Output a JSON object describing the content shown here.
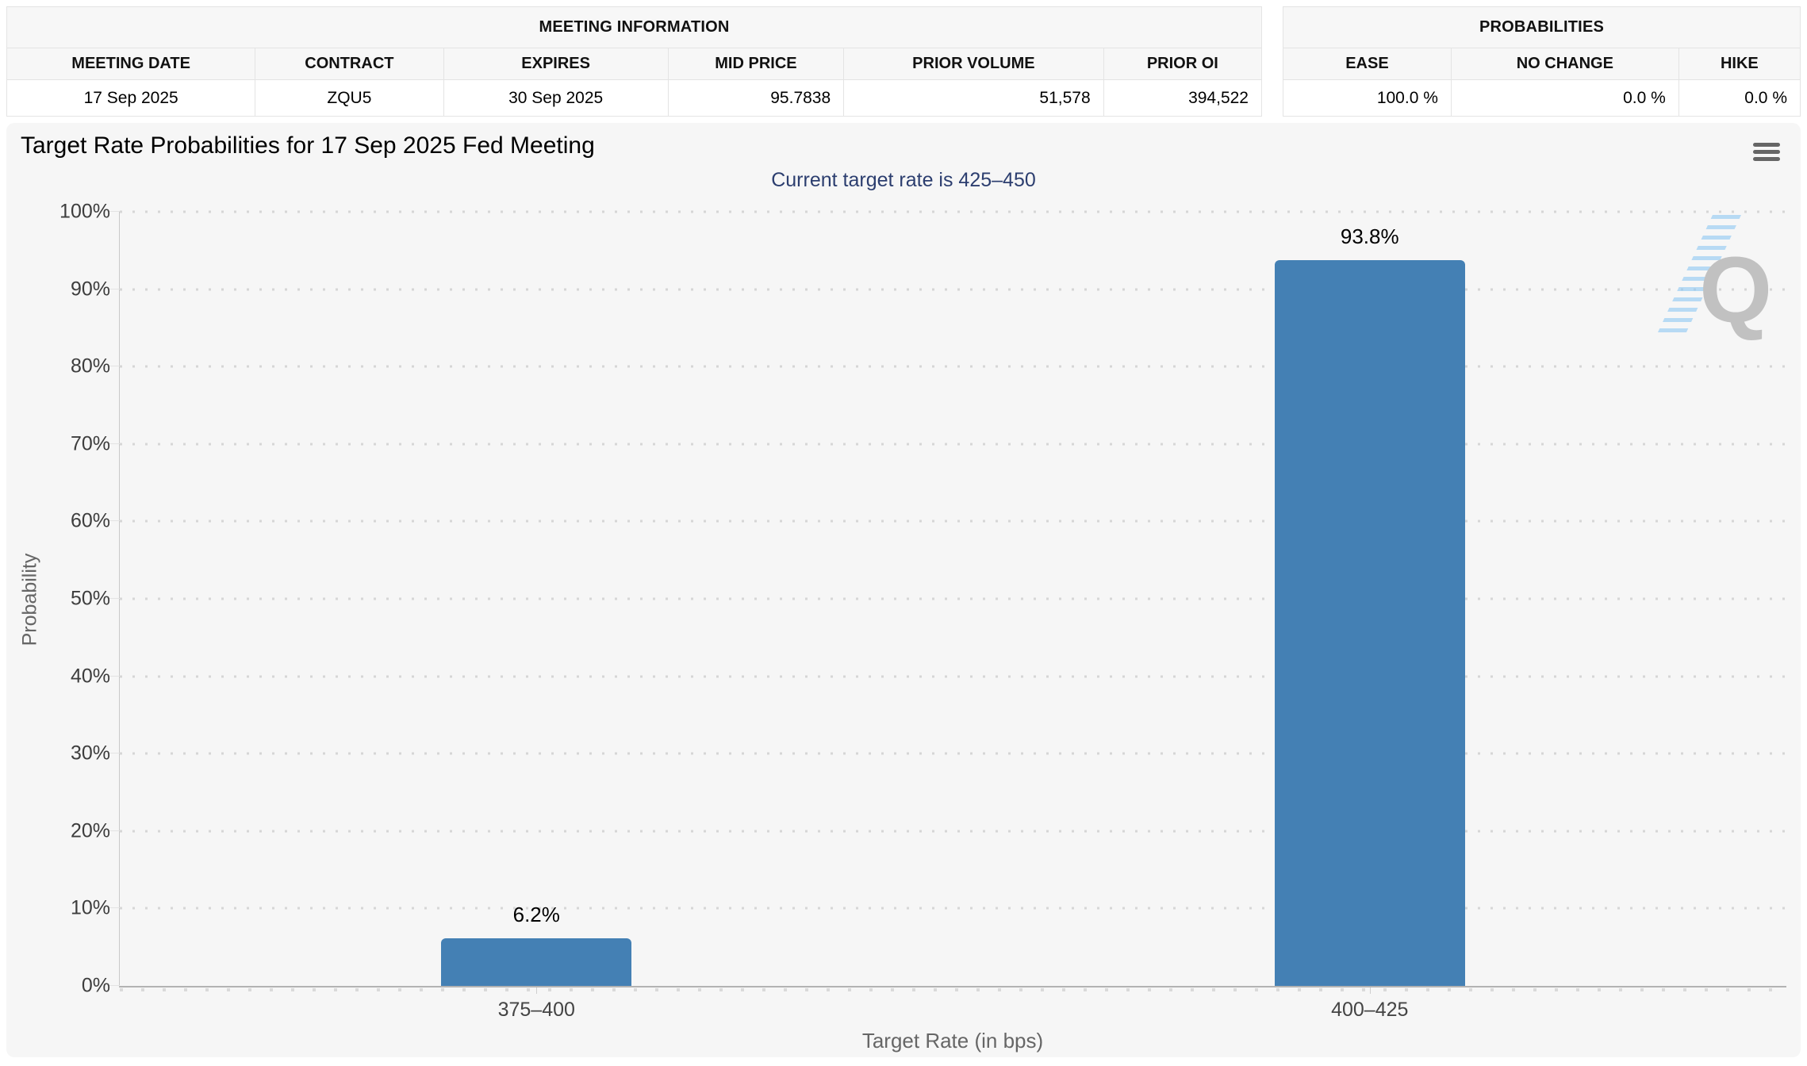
{
  "meeting_info": {
    "title": "MEETING INFORMATION",
    "columns": [
      "MEETING DATE",
      "CONTRACT",
      "EXPIRES",
      "MID PRICE",
      "PRIOR VOLUME",
      "PRIOR OI"
    ],
    "values": [
      "17 Sep 2025",
      "ZQU5",
      "30 Sep 2025",
      "95.7838",
      "51,578",
      "394,522"
    ]
  },
  "probabilities": {
    "title": "PROBABILITIES",
    "columns": [
      "EASE",
      "NO CHANGE",
      "HIKE"
    ],
    "values": [
      "100.0 %",
      "0.0 %",
      "0.0 %"
    ]
  },
  "chart_data": {
    "type": "bar",
    "title": "Target Rate Probabilities for 17 Sep 2025 Fed Meeting",
    "subtitle": "Current target rate is 425–450",
    "categories": [
      "375–400",
      "400–425"
    ],
    "values": [
      6.2,
      93.8
    ],
    "value_labels": [
      "6.2%",
      "93.8%"
    ],
    "xlabel": "Target Rate (in bps)",
    "ylabel": "Probability",
    "ylim": [
      0,
      100
    ],
    "yticks": [
      0,
      10,
      20,
      30,
      40,
      50,
      60,
      70,
      80,
      90,
      100
    ],
    "ytick_suffix": "%",
    "grid": "dotted-horizontal",
    "legend": "none",
    "bar_color": "#4480b4",
    "subtitle_color": "#2c3e6f",
    "watermark_letter": "Q",
    "menu_icon": "hamburger-icon"
  }
}
